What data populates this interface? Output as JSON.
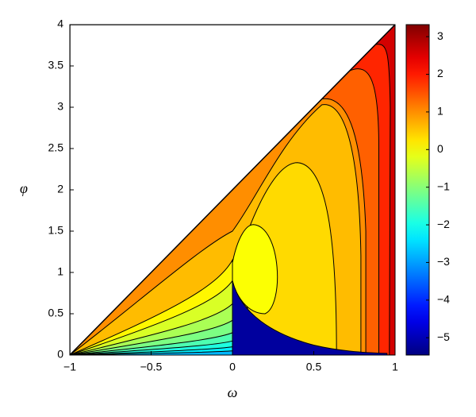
{
  "chart_data": {
    "type": "contour",
    "x_label": "ω",
    "y_label": "φ",
    "xlim": [
      -1,
      1
    ],
    "ylim": [
      0,
      4
    ],
    "xticks": [
      {
        "value": -1,
        "label": "−1"
      },
      {
        "value": -0.5,
        "label": "−0.5"
      },
      0,
      0.5,
      1
    ],
    "yticks": [
      0,
      0.5,
      1,
      1.5,
      2,
      2.5,
      3,
      3.5,
      4
    ],
    "clim": [
      -5.46,
      3.32
    ],
    "cticks": [
      {
        "value": -5,
        "label": "−5"
      },
      {
        "value": -4,
        "label": "−4"
      },
      {
        "value": -3,
        "label": "−3"
      },
      {
        "value": -2,
        "label": "−2"
      },
      {
        "value": -1,
        "label": "−1"
      },
      0,
      1,
      2,
      3
    ],
    "levels": [
      2.6,
      1.9,
      1.4,
      1.0,
      0.6,
      0.35,
      0.0,
      0.1,
      -0.3,
      -0.7,
      -1.1,
      -1.5,
      -1.9,
      -2.3,
      -2.8,
      -5.2
    ],
    "colormap": "jet"
  }
}
